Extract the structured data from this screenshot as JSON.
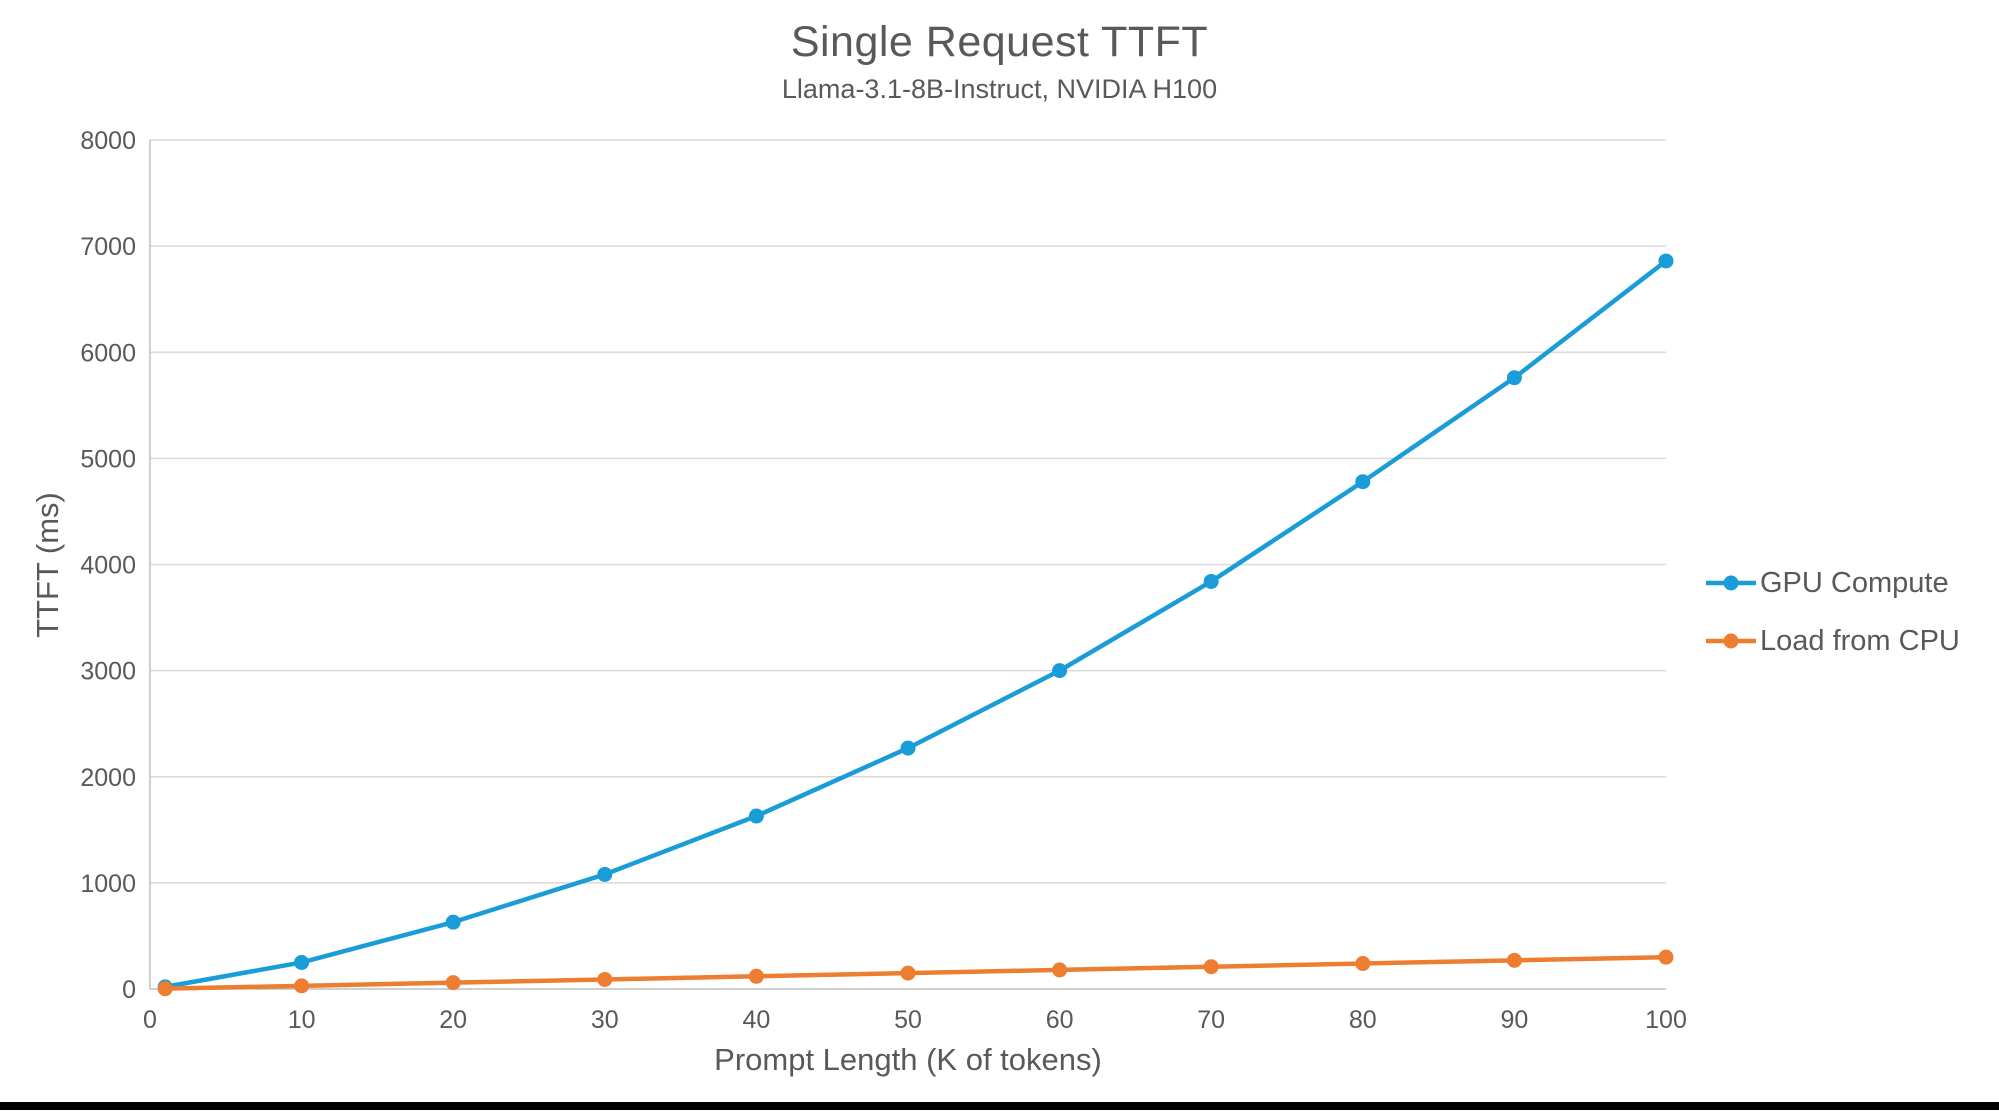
{
  "chart_data": {
    "type": "line",
    "title": "Single Request TTFT",
    "subtitle": "Llama-3.1-8B-Instruct, NVIDIA H100",
    "xlabel": "Prompt Length (K of tokens)",
    "ylabel": "TTFT (ms)",
    "x": [
      1,
      10,
      20,
      30,
      40,
      50,
      60,
      70,
      80,
      90,
      100
    ],
    "series": [
      {
        "name": "GPU Compute",
        "color": "#199CD8",
        "values": [
          20,
          250,
          630,
          1080,
          1630,
          2270,
          3000,
          3840,
          4780,
          5760,
          6860
        ]
      },
      {
        "name": "Load from CPU",
        "color": "#ED7D31",
        "values": [
          3,
          30,
          60,
          90,
          120,
          150,
          180,
          210,
          240,
          270,
          300
        ]
      }
    ],
    "xlim": [
      0,
      100
    ],
    "ylim": [
      0,
      8000
    ],
    "x_ticks": [
      0,
      10,
      20,
      30,
      40,
      50,
      60,
      70,
      80,
      90,
      100
    ],
    "y_ticks": [
      0,
      1000,
      2000,
      3000,
      4000,
      5000,
      6000,
      7000,
      8000
    ],
    "grid": "horizontal-only",
    "legend_position": "right",
    "colors": {
      "grid_line": "#D9D9D9",
      "axis_line": "#BFBFBF",
      "text": "#595959",
      "background": "#FFFFFF",
      "bottom_bar": "#000000"
    }
  }
}
